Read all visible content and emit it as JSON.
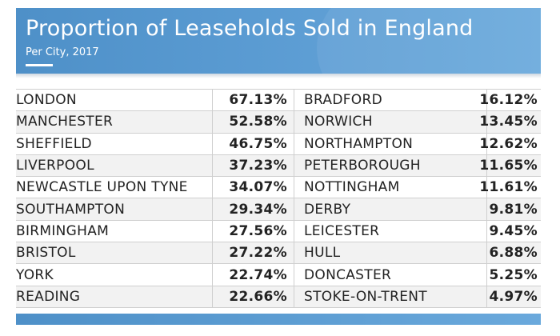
{
  "header": {
    "title": "Proportion of Leaseholds Sold in England",
    "subtitle": "Per City, 2017"
  },
  "colors": {
    "header_accent": "#5a9bd2",
    "row_alt": "#f2f2f2",
    "rule": "#cfcfcf"
  },
  "chart_data": {
    "type": "table",
    "title": "Proportion of Leaseholds Sold in England",
    "subtitle": "Per City, 2017",
    "left": [
      {
        "city": "LONDON",
        "value": "67.13%"
      },
      {
        "city": "MANCHESTER",
        "value": "52.58%"
      },
      {
        "city": "SHEFFIELD",
        "value": "46.75%"
      },
      {
        "city": "LIVERPOOL",
        "value": "37.23%"
      },
      {
        "city": "NEWCASTLE UPON TYNE",
        "value": "34.07%"
      },
      {
        "city": "SOUTHAMPTON",
        "value": "29.34%"
      },
      {
        "city": "BIRMINGHAM",
        "value": "27.56%"
      },
      {
        "city": "BRISTOL",
        "value": "27.22%"
      },
      {
        "city": "YORK",
        "value": "22.74%"
      },
      {
        "city": "READING",
        "value": "22.66%"
      }
    ],
    "right": [
      {
        "city": "BRADFORD",
        "value": "16.12%"
      },
      {
        "city": "NORWICH",
        "value": "13.45%"
      },
      {
        "city": "NORTHAMPTON",
        "value": "12.62%"
      },
      {
        "city": "PETERBOROUGH",
        "value": "11.65%"
      },
      {
        "city": "NOTTINGHAM",
        "value": "11.61%"
      },
      {
        "city": "DERBY",
        "value": "9.81%"
      },
      {
        "city": "LEICESTER",
        "value": "9.45%"
      },
      {
        "city": "HULL",
        "value": "6.88%"
      },
      {
        "city": "DONCASTER",
        "value": "5.25%"
      },
      {
        "city": "STOKE-ON-TRENT",
        "value": "4.97%"
      }
    ]
  }
}
